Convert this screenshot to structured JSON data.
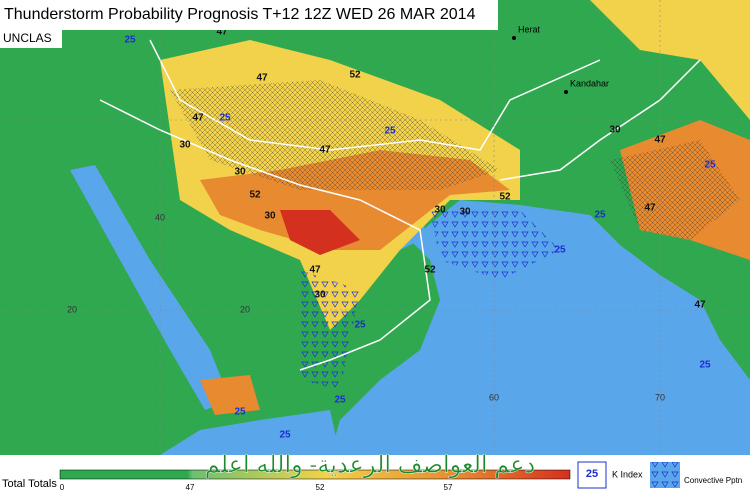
{
  "header": {
    "title": "Thunderstorm Probability Prognosis T+12 12Z WED 26 MAR 2014",
    "classification": "UNCLAS"
  },
  "places": [
    "Herat",
    "Kandahar"
  ],
  "grid_labels": [
    "40",
    "20",
    "20",
    "60",
    "70"
  ],
  "contour_labels": [
    "47",
    "52",
    "47",
    "25",
    "47",
    "25",
    "30",
    "47",
    "25",
    "30",
    "52",
    "30",
    "47",
    "30",
    "25",
    "30",
    "30",
    "52",
    "25",
    "52",
    "25",
    "47",
    "47",
    "25",
    "30",
    "25",
    "25",
    "25",
    "47",
    "25"
  ],
  "legend": {
    "scale_title": "Total Totals",
    "scale_ticks": [
      "0",
      "47",
      "52",
      "57"
    ],
    "k_index_value": "25",
    "k_index_label": "K Index",
    "pptn_label": "Convective Pptn"
  },
  "watermark": "دعم العواصف الرعدية- والله اعلم"
}
